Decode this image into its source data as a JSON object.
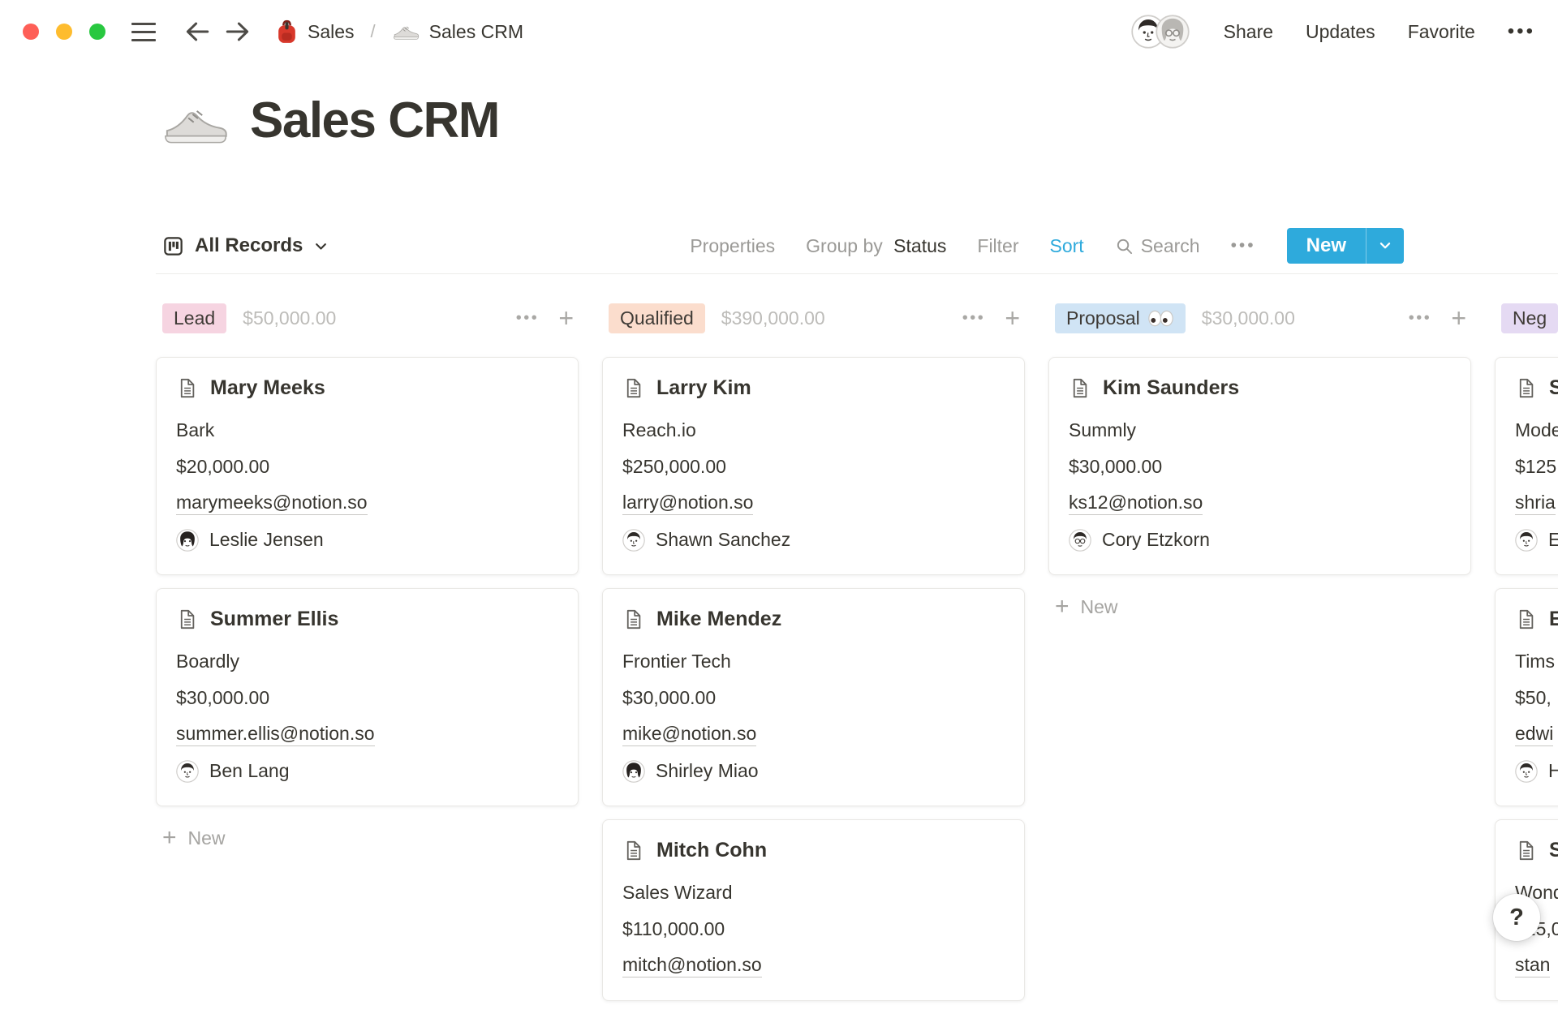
{
  "topbar": {
    "breadcrumb": {
      "root_icon": "backpack-icon",
      "root_label": "Sales",
      "separator": "/",
      "page_icon": "sneaker-icon",
      "page_label": "Sales CRM"
    },
    "avatars": [
      {
        "variant": "man"
      },
      {
        "variant": "gray-glasses"
      }
    ],
    "share_label": "Share",
    "updates_label": "Updates",
    "favorite_label": "Favorite",
    "more_label": "•••"
  },
  "page": {
    "icon": "sneaker-icon",
    "title": "Sales CRM"
  },
  "toolbar": {
    "view_label": "All Records",
    "properties_label": "Properties",
    "group_by_label": "Group by",
    "group_by_value": "Status",
    "filter_label": "Filter",
    "sort_label": "Sort",
    "search_label": "Search",
    "more_label": "•••",
    "new_label": "New"
  },
  "colors": {
    "accent_blue": "#2EAADC",
    "lead_badge": "#F6D4E1",
    "qualified_badge": "#FBDDCD",
    "proposal_badge": "#D0E4F5",
    "negotiation_badge": "#E5DAF3"
  },
  "board": {
    "add_card_label": "New",
    "columns": [
      {
        "status": "Lead",
        "badge_bg": "#F6D4E1",
        "sum": "$50,000.00",
        "show_add_new": true,
        "cards": [
          {
            "title": "Mary Meeks",
            "company": "Bark",
            "amount": "$20,000.00",
            "email": "marymeeks@notion.so",
            "assignee": "Leslie Jensen",
            "avatar": "woman"
          },
          {
            "title": "Summer Ellis",
            "company": "Boardly",
            "amount": "$30,000.00",
            "email": "summer.ellis@notion.so",
            "assignee": "Ben Lang",
            "avatar": "man"
          }
        ]
      },
      {
        "status": "Qualified",
        "badge_bg": "#FBDDCD",
        "sum": "$390,000.00",
        "show_add_new": false,
        "cards": [
          {
            "title": "Larry Kim",
            "company": "Reach.io",
            "amount": "$250,000.00",
            "email": "larry@notion.so",
            "assignee": "Shawn Sanchez",
            "avatar": "man"
          },
          {
            "title": "Mike Mendez",
            "company": "Frontier Tech",
            "amount": "$30,000.00",
            "email": "mike@notion.so",
            "assignee": "Shirley Miao",
            "avatar": "woman"
          },
          {
            "title": "Mitch Cohn",
            "company": "Sales Wizard",
            "amount": "$110,000.00",
            "email": "mitch@notion.so",
            "assignee": "",
            "avatar": ""
          }
        ]
      },
      {
        "status": "Proposal",
        "status_emoji": "eyes",
        "badge_bg": "#D0E4F5",
        "sum": "$30,000.00",
        "show_add_new": true,
        "cards": [
          {
            "title": "Kim Saunders",
            "company": "Summly",
            "amount": "$30,000.00",
            "email": "ks12@notion.so",
            "assignee": "Cory Etzkorn",
            "avatar": "glasses"
          }
        ]
      },
      {
        "status": "Neg",
        "badge_bg": "#E5DAF3",
        "sum": "",
        "show_add_new": false,
        "cards": [
          {
            "title": "S",
            "company": "Mode",
            "amount": "$125,",
            "email": "shria",
            "assignee": "E",
            "avatar": "man"
          },
          {
            "title": "E",
            "company": "Tims",
            "amount": "$50,",
            "email": "edwi",
            "assignee": "H",
            "avatar": "man"
          },
          {
            "title": "S",
            "company": "Wond",
            "amount": "$25,0",
            "email": "stan",
            "assignee": "",
            "avatar": ""
          }
        ]
      }
    ]
  },
  "help_button": {
    "label": "?"
  }
}
